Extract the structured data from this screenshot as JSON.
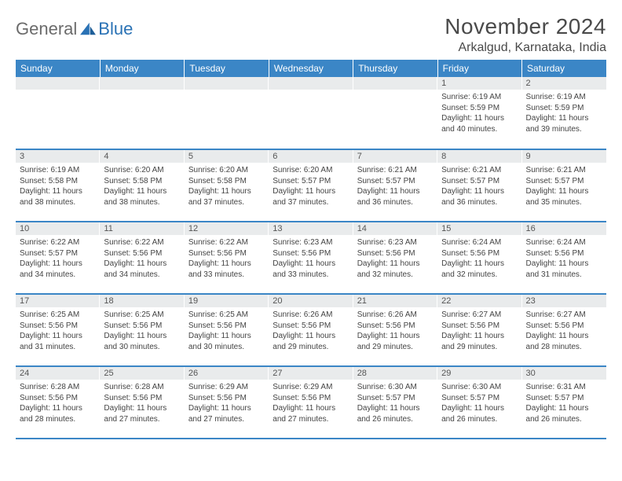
{
  "brand": {
    "part1": "General",
    "part2": "Blue"
  },
  "title": "November 2024",
  "location": "Arkalgud, Karnataka, India",
  "colors": {
    "header_bg": "#3b86c6",
    "header_text": "#ffffff",
    "daynum_bg": "#e9ebec",
    "text": "#444444",
    "rule": "#3b86c6"
  },
  "weekdays": [
    "Sunday",
    "Monday",
    "Tuesday",
    "Wednesday",
    "Thursday",
    "Friday",
    "Saturday"
  ],
  "weeks": [
    [
      {
        "n": "",
        "lines": []
      },
      {
        "n": "",
        "lines": []
      },
      {
        "n": "",
        "lines": []
      },
      {
        "n": "",
        "lines": []
      },
      {
        "n": "",
        "lines": []
      },
      {
        "n": "1",
        "lines": [
          "Sunrise: 6:19 AM",
          "Sunset: 5:59 PM",
          "Daylight: 11 hours and 40 minutes."
        ]
      },
      {
        "n": "2",
        "lines": [
          "Sunrise: 6:19 AM",
          "Sunset: 5:59 PM",
          "Daylight: 11 hours and 39 minutes."
        ]
      }
    ],
    [
      {
        "n": "3",
        "lines": [
          "Sunrise: 6:19 AM",
          "Sunset: 5:58 PM",
          "Daylight: 11 hours and 38 minutes."
        ]
      },
      {
        "n": "4",
        "lines": [
          "Sunrise: 6:20 AM",
          "Sunset: 5:58 PM",
          "Daylight: 11 hours and 38 minutes."
        ]
      },
      {
        "n": "5",
        "lines": [
          "Sunrise: 6:20 AM",
          "Sunset: 5:58 PM",
          "Daylight: 11 hours and 37 minutes."
        ]
      },
      {
        "n": "6",
        "lines": [
          "Sunrise: 6:20 AM",
          "Sunset: 5:57 PM",
          "Daylight: 11 hours and 37 minutes."
        ]
      },
      {
        "n": "7",
        "lines": [
          "Sunrise: 6:21 AM",
          "Sunset: 5:57 PM",
          "Daylight: 11 hours and 36 minutes."
        ]
      },
      {
        "n": "8",
        "lines": [
          "Sunrise: 6:21 AM",
          "Sunset: 5:57 PM",
          "Daylight: 11 hours and 36 minutes."
        ]
      },
      {
        "n": "9",
        "lines": [
          "Sunrise: 6:21 AM",
          "Sunset: 5:57 PM",
          "Daylight: 11 hours and 35 minutes."
        ]
      }
    ],
    [
      {
        "n": "10",
        "lines": [
          "Sunrise: 6:22 AM",
          "Sunset: 5:57 PM",
          "Daylight: 11 hours and 34 minutes."
        ]
      },
      {
        "n": "11",
        "lines": [
          "Sunrise: 6:22 AM",
          "Sunset: 5:56 PM",
          "Daylight: 11 hours and 34 minutes."
        ]
      },
      {
        "n": "12",
        "lines": [
          "Sunrise: 6:22 AM",
          "Sunset: 5:56 PM",
          "Daylight: 11 hours and 33 minutes."
        ]
      },
      {
        "n": "13",
        "lines": [
          "Sunrise: 6:23 AM",
          "Sunset: 5:56 PM",
          "Daylight: 11 hours and 33 minutes."
        ]
      },
      {
        "n": "14",
        "lines": [
          "Sunrise: 6:23 AM",
          "Sunset: 5:56 PM",
          "Daylight: 11 hours and 32 minutes."
        ]
      },
      {
        "n": "15",
        "lines": [
          "Sunrise: 6:24 AM",
          "Sunset: 5:56 PM",
          "Daylight: 11 hours and 32 minutes."
        ]
      },
      {
        "n": "16",
        "lines": [
          "Sunrise: 6:24 AM",
          "Sunset: 5:56 PM",
          "Daylight: 11 hours and 31 minutes."
        ]
      }
    ],
    [
      {
        "n": "17",
        "lines": [
          "Sunrise: 6:25 AM",
          "Sunset: 5:56 PM",
          "Daylight: 11 hours and 31 minutes."
        ]
      },
      {
        "n": "18",
        "lines": [
          "Sunrise: 6:25 AM",
          "Sunset: 5:56 PM",
          "Daylight: 11 hours and 30 minutes."
        ]
      },
      {
        "n": "19",
        "lines": [
          "Sunrise: 6:25 AM",
          "Sunset: 5:56 PM",
          "Daylight: 11 hours and 30 minutes."
        ]
      },
      {
        "n": "20",
        "lines": [
          "Sunrise: 6:26 AM",
          "Sunset: 5:56 PM",
          "Daylight: 11 hours and 29 minutes."
        ]
      },
      {
        "n": "21",
        "lines": [
          "Sunrise: 6:26 AM",
          "Sunset: 5:56 PM",
          "Daylight: 11 hours and 29 minutes."
        ]
      },
      {
        "n": "22",
        "lines": [
          "Sunrise: 6:27 AM",
          "Sunset: 5:56 PM",
          "Daylight: 11 hours and 29 minutes."
        ]
      },
      {
        "n": "23",
        "lines": [
          "Sunrise: 6:27 AM",
          "Sunset: 5:56 PM",
          "Daylight: 11 hours and 28 minutes."
        ]
      }
    ],
    [
      {
        "n": "24",
        "lines": [
          "Sunrise: 6:28 AM",
          "Sunset: 5:56 PM",
          "Daylight: 11 hours and 28 minutes."
        ]
      },
      {
        "n": "25",
        "lines": [
          "Sunrise: 6:28 AM",
          "Sunset: 5:56 PM",
          "Daylight: 11 hours and 27 minutes."
        ]
      },
      {
        "n": "26",
        "lines": [
          "Sunrise: 6:29 AM",
          "Sunset: 5:56 PM",
          "Daylight: 11 hours and 27 minutes."
        ]
      },
      {
        "n": "27",
        "lines": [
          "Sunrise: 6:29 AM",
          "Sunset: 5:56 PM",
          "Daylight: 11 hours and 27 minutes."
        ]
      },
      {
        "n": "28",
        "lines": [
          "Sunrise: 6:30 AM",
          "Sunset: 5:57 PM",
          "Daylight: 11 hours and 26 minutes."
        ]
      },
      {
        "n": "29",
        "lines": [
          "Sunrise: 6:30 AM",
          "Sunset: 5:57 PM",
          "Daylight: 11 hours and 26 minutes."
        ]
      },
      {
        "n": "30",
        "lines": [
          "Sunrise: 6:31 AM",
          "Sunset: 5:57 PM",
          "Daylight: 11 hours and 26 minutes."
        ]
      }
    ]
  ]
}
